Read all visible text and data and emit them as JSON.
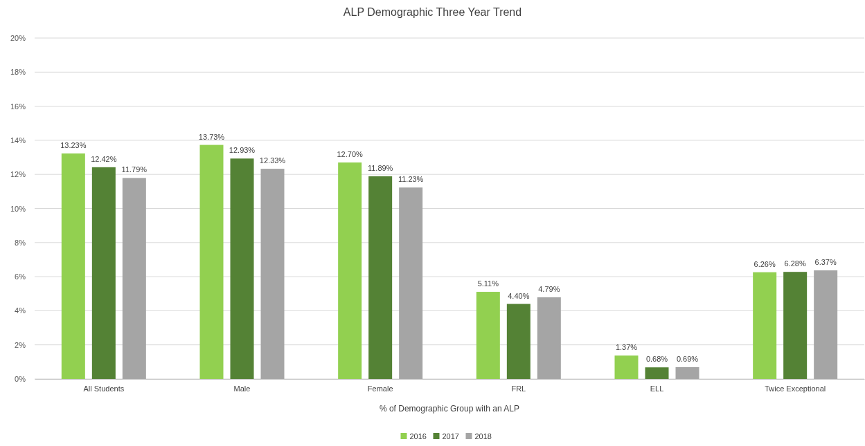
{
  "chart_data": {
    "type": "bar",
    "title": "ALP Demographic Three Year Trend",
    "xlabel": "% of Demographic Group with an ALP",
    "categories": [
      "All Students",
      "Male",
      "Female",
      "FRL",
      "ELL",
      "Twice Exceptional"
    ],
    "series": [
      {
        "name": "2016",
        "color": "#92d050",
        "values": [
          13.23,
          13.73,
          12.7,
          5.11,
          1.37,
          6.26
        ],
        "value_labels": [
          "13.23%",
          "13.73%",
          "12.70%",
          "5.11%",
          "1.37%",
          "6.26%"
        ]
      },
      {
        "name": "2017",
        "color": "#548235",
        "values": [
          12.42,
          12.93,
          11.89,
          4.4,
          0.68,
          6.28
        ],
        "value_labels": [
          "12.42%",
          "12.93%",
          "11.89%",
          "4.40%",
          "0.68%",
          "6.28%"
        ]
      },
      {
        "name": "2018",
        "color": "#a5a5a5",
        "values": [
          11.79,
          12.33,
          11.23,
          4.79,
          0.69,
          6.37
        ],
        "value_labels": [
          "11.79%",
          "12.33%",
          "11.23%",
          "4.79%",
          "0.69%",
          "6.37%"
        ]
      }
    ],
    "ylim": [
      0,
      20
    ],
    "yticks": [
      {
        "value": 0,
        "label": "0%"
      },
      {
        "value": 2,
        "label": "2%"
      },
      {
        "value": 4,
        "label": "4%"
      },
      {
        "value": 6,
        "label": "6%"
      },
      {
        "value": 8,
        "label": "8%"
      },
      {
        "value": 10,
        "label": "10%"
      },
      {
        "value": 12,
        "label": "12%"
      },
      {
        "value": 14,
        "label": "14%"
      },
      {
        "value": 16,
        "label": "16%"
      },
      {
        "value": 18,
        "label": "18%"
      },
      {
        "value": 20,
        "label": "20%"
      }
    ],
    "grid": "y",
    "legend": "bottom"
  }
}
